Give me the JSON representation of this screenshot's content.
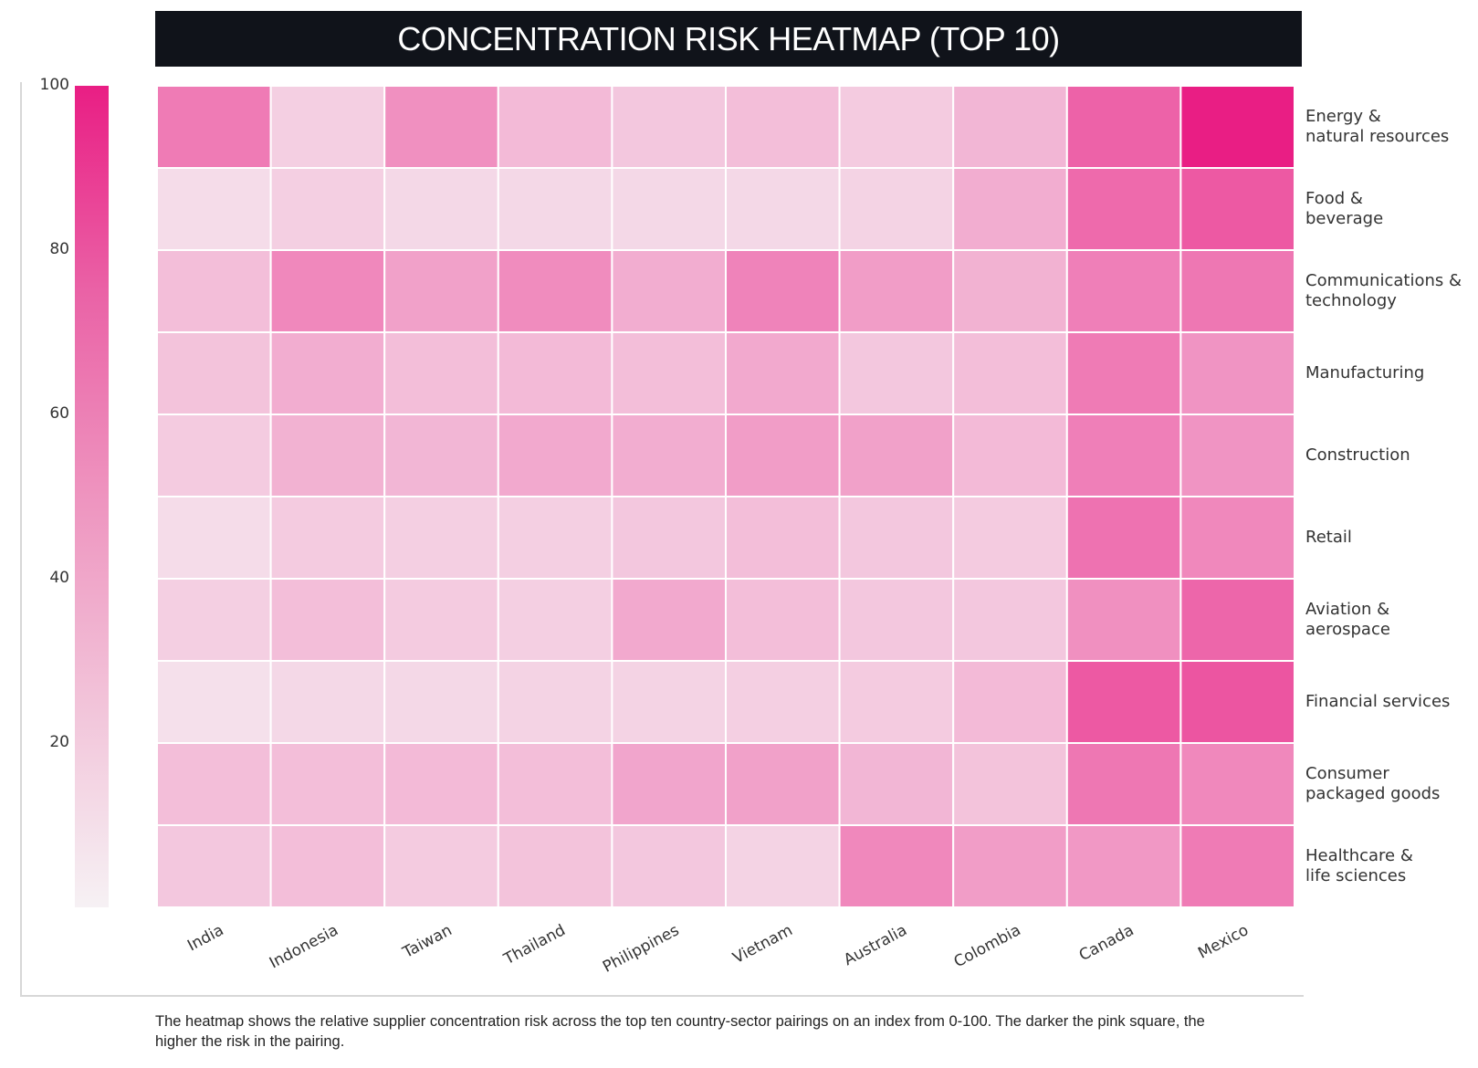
{
  "title": "CONCENTRATION RISK HEATMAP (TOP 10)",
  "caption": "The heatmap shows the relative supplier concentration risk across the top ten country-sector pairings on an index from 0-100. The darker the pink square, the higher the risk in the pairing.",
  "colors": {
    "low": "#f6f1f4",
    "high": "#e91e84",
    "title_bg": "#10131a"
  },
  "chart_data": {
    "type": "heatmap",
    "colorbar": {
      "min": 0,
      "max": 100,
      "ticks": [
        100,
        80,
        60,
        40,
        20
      ]
    },
    "columns": [
      "India",
      "Indonesia",
      "Taiwan",
      "Thailand",
      "Philippines",
      "Vietnam",
      "Australia",
      "Colombia",
      "Canada",
      "Mexico"
    ],
    "rows": [
      {
        "lines": [
          "Energy &",
          "natural resources"
        ],
        "values": [
          56,
          16,
          46,
          26,
          20,
          24,
          18,
          28,
          68,
          100
        ]
      },
      {
        "lines": [
          "Food &",
          "beverage"
        ],
        "values": [
          10,
          16,
          12,
          12,
          12,
          12,
          14,
          32,
          64,
          72
        ]
      },
      {
        "lines": [
          "Communications &",
          "technology"
        ],
        "values": [
          24,
          50,
          38,
          48,
          32,
          52,
          40,
          30,
          54,
          58
        ]
      },
      {
        "lines": [
          "Manufacturing"
        ],
        "values": [
          22,
          32,
          24,
          26,
          24,
          34,
          20,
          24,
          56,
          44
        ]
      },
      {
        "lines": [
          "Construction"
        ],
        "values": [
          18,
          30,
          28,
          34,
          32,
          40,
          38,
          26,
          54,
          44
        ]
      },
      {
        "lines": [
          "Retail"
        ],
        "values": [
          10,
          18,
          16,
          16,
          20,
          24,
          20,
          18,
          60,
          50
        ]
      },
      {
        "lines": [
          "Aviation &",
          "aerospace"
        ],
        "values": [
          16,
          24,
          18,
          16,
          34,
          24,
          20,
          20,
          46,
          66
        ]
      },
      {
        "lines": [
          "Financial services"
        ],
        "values": [
          8,
          12,
          12,
          14,
          14,
          16,
          18,
          26,
          72,
          74
        ]
      },
      {
        "lines": [
          "Consumer",
          "packaged goods"
        ],
        "values": [
          24,
          24,
          26,
          24,
          36,
          38,
          28,
          22,
          58,
          50
        ]
      },
      {
        "lines": [
          "Healthcare &",
          "life sciences"
        ],
        "values": [
          20,
          24,
          18,
          22,
          20,
          14,
          50,
          40,
          42,
          56
        ]
      }
    ]
  }
}
